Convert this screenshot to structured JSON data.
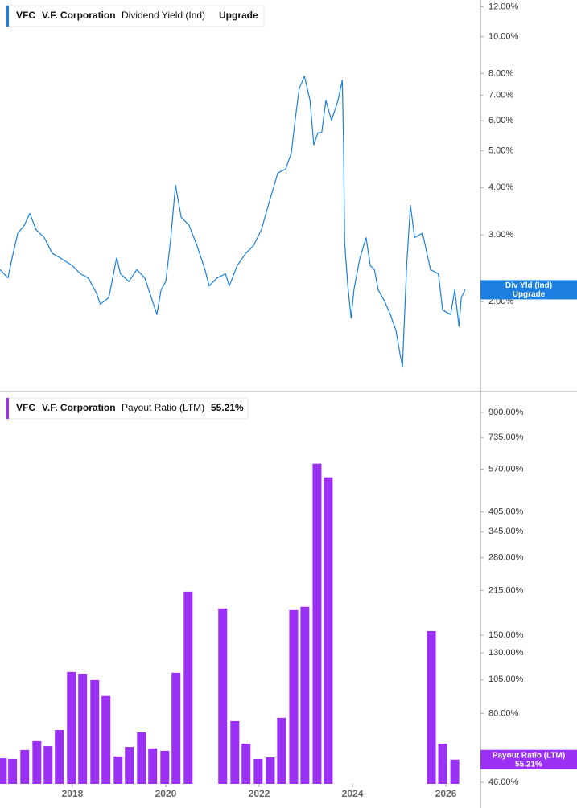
{
  "chart_data": [
    {
      "type": "line",
      "header": {
        "ticker": "VFC",
        "company": "V.F. Corporation",
        "metric": "Dividend Yield (Ind)",
        "action": "Upgrade"
      },
      "tag": {
        "title": "Div Yld (Ind)",
        "action": "Upgrade"
      },
      "log_scale": true,
      "color": "#1a7fe0",
      "xlim": [
        2016.45,
        2026.74
      ],
      "ylim": [
        1.17,
        12.5
      ],
      "yticks": [
        {
          "value": 12,
          "label": "12.00%"
        },
        {
          "value": 10,
          "label": "10.00%"
        },
        {
          "value": 8,
          "label": "8.00%"
        },
        {
          "value": 7,
          "label": "7.00%"
        },
        {
          "value": 6,
          "label": "6.00%"
        },
        {
          "value": 5,
          "label": "5.00%"
        },
        {
          "value": 4,
          "label": "4.00%"
        },
        {
          "value": 3,
          "label": "3.00%"
        },
        {
          "value": 2,
          "label": "2.00%"
        }
      ],
      "x": [
        2016.45,
        2016.62,
        2016.71,
        2016.83,
        2016.97,
        2017.09,
        2017.22,
        2017.4,
        2017.57,
        2017.74,
        2018.0,
        2018.17,
        2018.34,
        2018.52,
        2018.6,
        2018.78,
        2018.95,
        2019.03,
        2019.21,
        2019.38,
        2019.55,
        2019.72,
        2019.81,
        2019.9,
        2020.0,
        2020.1,
        2020.21,
        2020.33,
        2020.5,
        2020.67,
        2020.84,
        2020.93,
        2021.1,
        2021.28,
        2021.36,
        2021.53,
        2021.71,
        2021.88,
        2022.05,
        2022.22,
        2022.4,
        2022.57,
        2022.69,
        2022.78,
        2022.86,
        2022.97,
        2023.09,
        2023.17,
        2023.26,
        2023.34,
        2023.43,
        2023.55,
        2023.69,
        2023.78,
        2023.81,
        2023.83,
        2023.9,
        2023.97,
        2024.03,
        2024.16,
        2024.29,
        2024.38,
        2024.47,
        2024.55,
        2024.69,
        2024.81,
        2024.93,
        2025.02,
        2025.07,
        2025.16,
        2025.24,
        2025.33,
        2025.5,
        2025.67,
        2025.84,
        2025.93,
        2026.1,
        2026.19,
        2026.28,
        2026.33,
        2026.41
      ],
      "values": [
        2.43,
        2.31,
        2.61,
        3.03,
        3.18,
        3.42,
        3.1,
        2.95,
        2.68,
        2.61,
        2.49,
        2.37,
        2.31,
        2.1,
        1.97,
        2.05,
        2.61,
        2.37,
        2.26,
        2.43,
        2.31,
        2.0,
        1.85,
        2.15,
        2.26,
        2.88,
        4.06,
        3.34,
        3.18,
        2.81,
        2.43,
        2.2,
        2.31,
        2.37,
        2.2,
        2.49,
        2.68,
        2.81,
        3.1,
        3.68,
        4.37,
        4.48,
        4.94,
        6.16,
        7.31,
        7.87,
        6.79,
        5.19,
        5.58,
        5.58,
        6.79,
        6.01,
        6.79,
        7.68,
        5.06,
        2.88,
        2.2,
        1.81,
        2.15,
        2.61,
        2.95,
        2.49,
        2.43,
        2.15,
        2.0,
        1.85,
        1.68,
        1.45,
        1.35,
        2.49,
        3.59,
        2.95,
        3.03,
        2.43,
        2.37,
        1.9,
        1.85,
        2.15,
        1.72,
        2.05,
        2.15
      ]
    },
    {
      "type": "bar",
      "header": {
        "ticker": "VFC",
        "company": "V.F. Corporation",
        "metric": "Payout Ratio (LTM)",
        "value": {
          "value": 55.21,
          "label": "55.21%"
        }
      },
      "tag": {
        "title": "Payout Ratio (LTM)"
      },
      "log_scale": true,
      "color": "#9b30f5",
      "xlim": [
        2016.45,
        2026.74
      ],
      "ylim": [
        45.4,
        1057
      ],
      "xticks": [
        2018,
        2020,
        2022,
        2024,
        2026
      ],
      "yticks": [
        {
          "value": 900,
          "label": "900.00%"
        },
        {
          "value": 735,
          "label": "735.00%"
        },
        {
          "value": 570,
          "label": "570.00%"
        },
        {
          "value": 405,
          "label": "405.00%"
        },
        {
          "value": 345,
          "label": "345.00%"
        },
        {
          "value": 280,
          "label": "280.00%"
        },
        {
          "value": 215,
          "label": "215.00%"
        },
        {
          "value": 150,
          "label": "150.00%"
        },
        {
          "value": 130,
          "label": "130.00%"
        },
        {
          "value": 105,
          "label": "105.00%"
        },
        {
          "value": 80,
          "label": "80.00%"
        },
        {
          "value": 46,
          "label": "46.00%"
        }
      ],
      "x": [
        2016.5,
        2016.72,
        2016.98,
        2017.24,
        2017.48,
        2017.72,
        2017.98,
        2018.22,
        2018.48,
        2018.72,
        2018.98,
        2019.22,
        2019.48,
        2019.72,
        2019.98,
        2020.22,
        2020.48,
        2021.22,
        2021.48,
        2021.72,
        2021.98,
        2022.24,
        2022.48,
        2022.74,
        2022.98,
        2023.24,
        2023.48,
        2025.69,
        2025.93,
        2026.19
      ],
      "values": [
        55.8,
        55.5,
        59.6,
        64.0,
        61.5,
        70.0,
        111.6,
        110.1,
        104.6,
        92.0,
        56.6,
        61.1,
        68.7,
        60.4,
        59.2,
        110.9,
        213,
        186,
        75.2,
        62.7,
        55.5,
        56.2,
        77.2,
        183.6,
        188.5,
        596,
        534,
        155.1,
        62.7,
        55.21
      ]
    }
  ]
}
